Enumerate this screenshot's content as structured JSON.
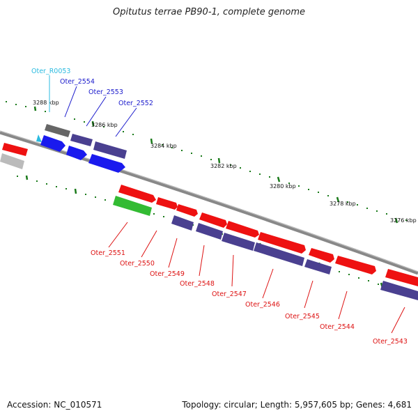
{
  "title": "Opitutus terrae PB90-1, complete genome",
  "footer": {
    "accession": "Accession: NC_010571",
    "topology": "Topology: circular; Length: 5,957,605 bp; Genes: 4,681"
  },
  "colors": {
    "background": "#ffffff",
    "backbone": "#888888",
    "tick": "#1a7a1a",
    "rna": "#2bbbe0",
    "label_blue": "#1a1acc",
    "label_red": "#dd1111"
  },
  "tick_labels": [
    "3288 kbp",
    "3286 kbp",
    "3284 kbp",
    "3282 kbp",
    "3280 kbp",
    "3278 kbp",
    "3276 kbp"
  ],
  "gene_labels": {
    "top": [
      "Oter_R0053",
      "Oter_2554",
      "Oter_2553",
      "Oter_2552"
    ],
    "bottom": [
      "Oter_2551",
      "Oter_2550",
      "Oter_2549",
      "Oter_2548",
      "Oter_2547",
      "Oter_2546",
      "Oter_2545",
      "Oter_2544",
      "Oter_2543"
    ]
  }
}
